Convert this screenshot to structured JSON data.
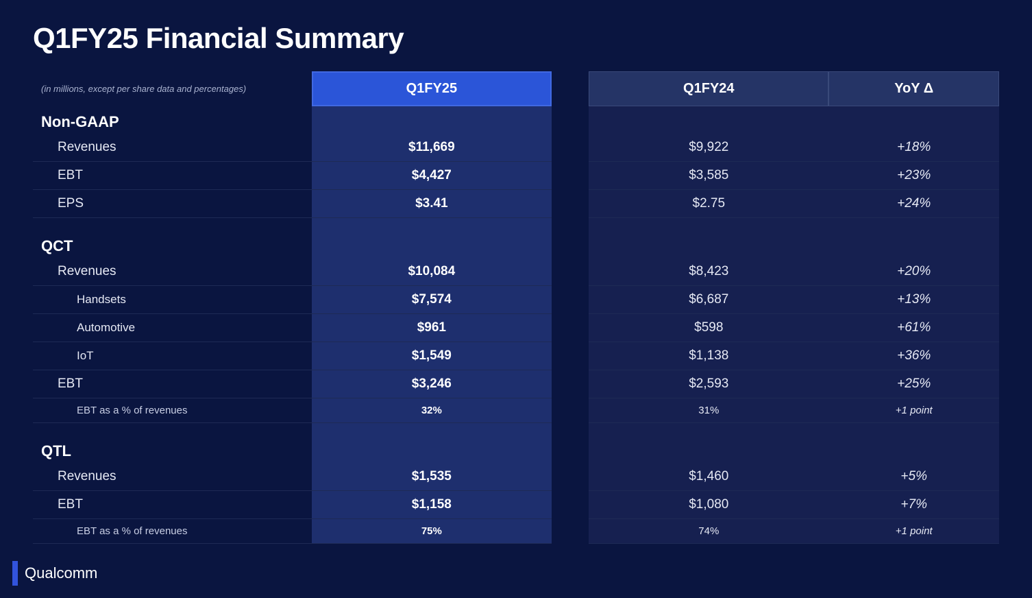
{
  "title": "Q1FY25 Financial Summary",
  "note": "(in millions, except per share data and percentages)",
  "columns": {
    "c1": "Q1FY25",
    "c2": "Q1FY24",
    "c3": "YoY Δ"
  },
  "colors": {
    "background": "#0a1540",
    "highlight_header_bg": "#2b55d8",
    "highlight_header_border": "#4169e1",
    "dim_header_bg": "#253466",
    "highlight_col_bg": "#1e2f6e",
    "dim_col_bg": "#162050",
    "text_primary": "#ffffff",
    "text_muted": "#aab3d0",
    "logo_accent": "#3253dc"
  },
  "sections": [
    {
      "name": "Non-GAAP",
      "rows": [
        {
          "label": "Revenues",
          "indent": 1,
          "c1": "$11,669",
          "c2": "$9,922",
          "c3": "+18%"
        },
        {
          "label": "EBT",
          "indent": 1,
          "c1": "$4,427",
          "c2": "$3,585",
          "c3": "+23%"
        },
        {
          "label": "EPS",
          "indent": 1,
          "c1": "$3.41",
          "c2": "$2.75",
          "c3": "+24%"
        }
      ]
    },
    {
      "name": "QCT",
      "rows": [
        {
          "label": "Revenues",
          "indent": 1,
          "c1": "$10,084",
          "c2": "$8,423",
          "c3": "+20%"
        },
        {
          "label": "Handsets",
          "indent": 2,
          "c1": "$7,574",
          "c2": "$6,687",
          "c3": "+13%"
        },
        {
          "label": "Automotive",
          "indent": 2,
          "c1": "$961",
          "c2": "$598",
          "c3": "+61%"
        },
        {
          "label": "IoT",
          "indent": 2,
          "c1": "$1,549",
          "c2": "$1,138",
          "c3": "+36%"
        },
        {
          "label": "EBT",
          "indent": 1,
          "c1": "$3,246",
          "c2": "$2,593",
          "c3": "+25%"
        },
        {
          "label": "EBT as a % of revenues",
          "indent": 2,
          "sub": true,
          "c1": "32%",
          "c2": "31%",
          "c3": "+1 point"
        }
      ]
    },
    {
      "name": "QTL",
      "rows": [
        {
          "label": "Revenues",
          "indent": 1,
          "c1": "$1,535",
          "c2": "$1,460",
          "c3": "+5%"
        },
        {
          "label": "EBT",
          "indent": 1,
          "c1": "$1,158",
          "c2": "$1,080",
          "c3": "+7%"
        },
        {
          "label": "EBT as a % of revenues",
          "indent": 2,
          "sub": true,
          "c1": "75%",
          "c2": "74%",
          "c3": "+1 point"
        }
      ]
    }
  ],
  "logo": "Qualcomm"
}
